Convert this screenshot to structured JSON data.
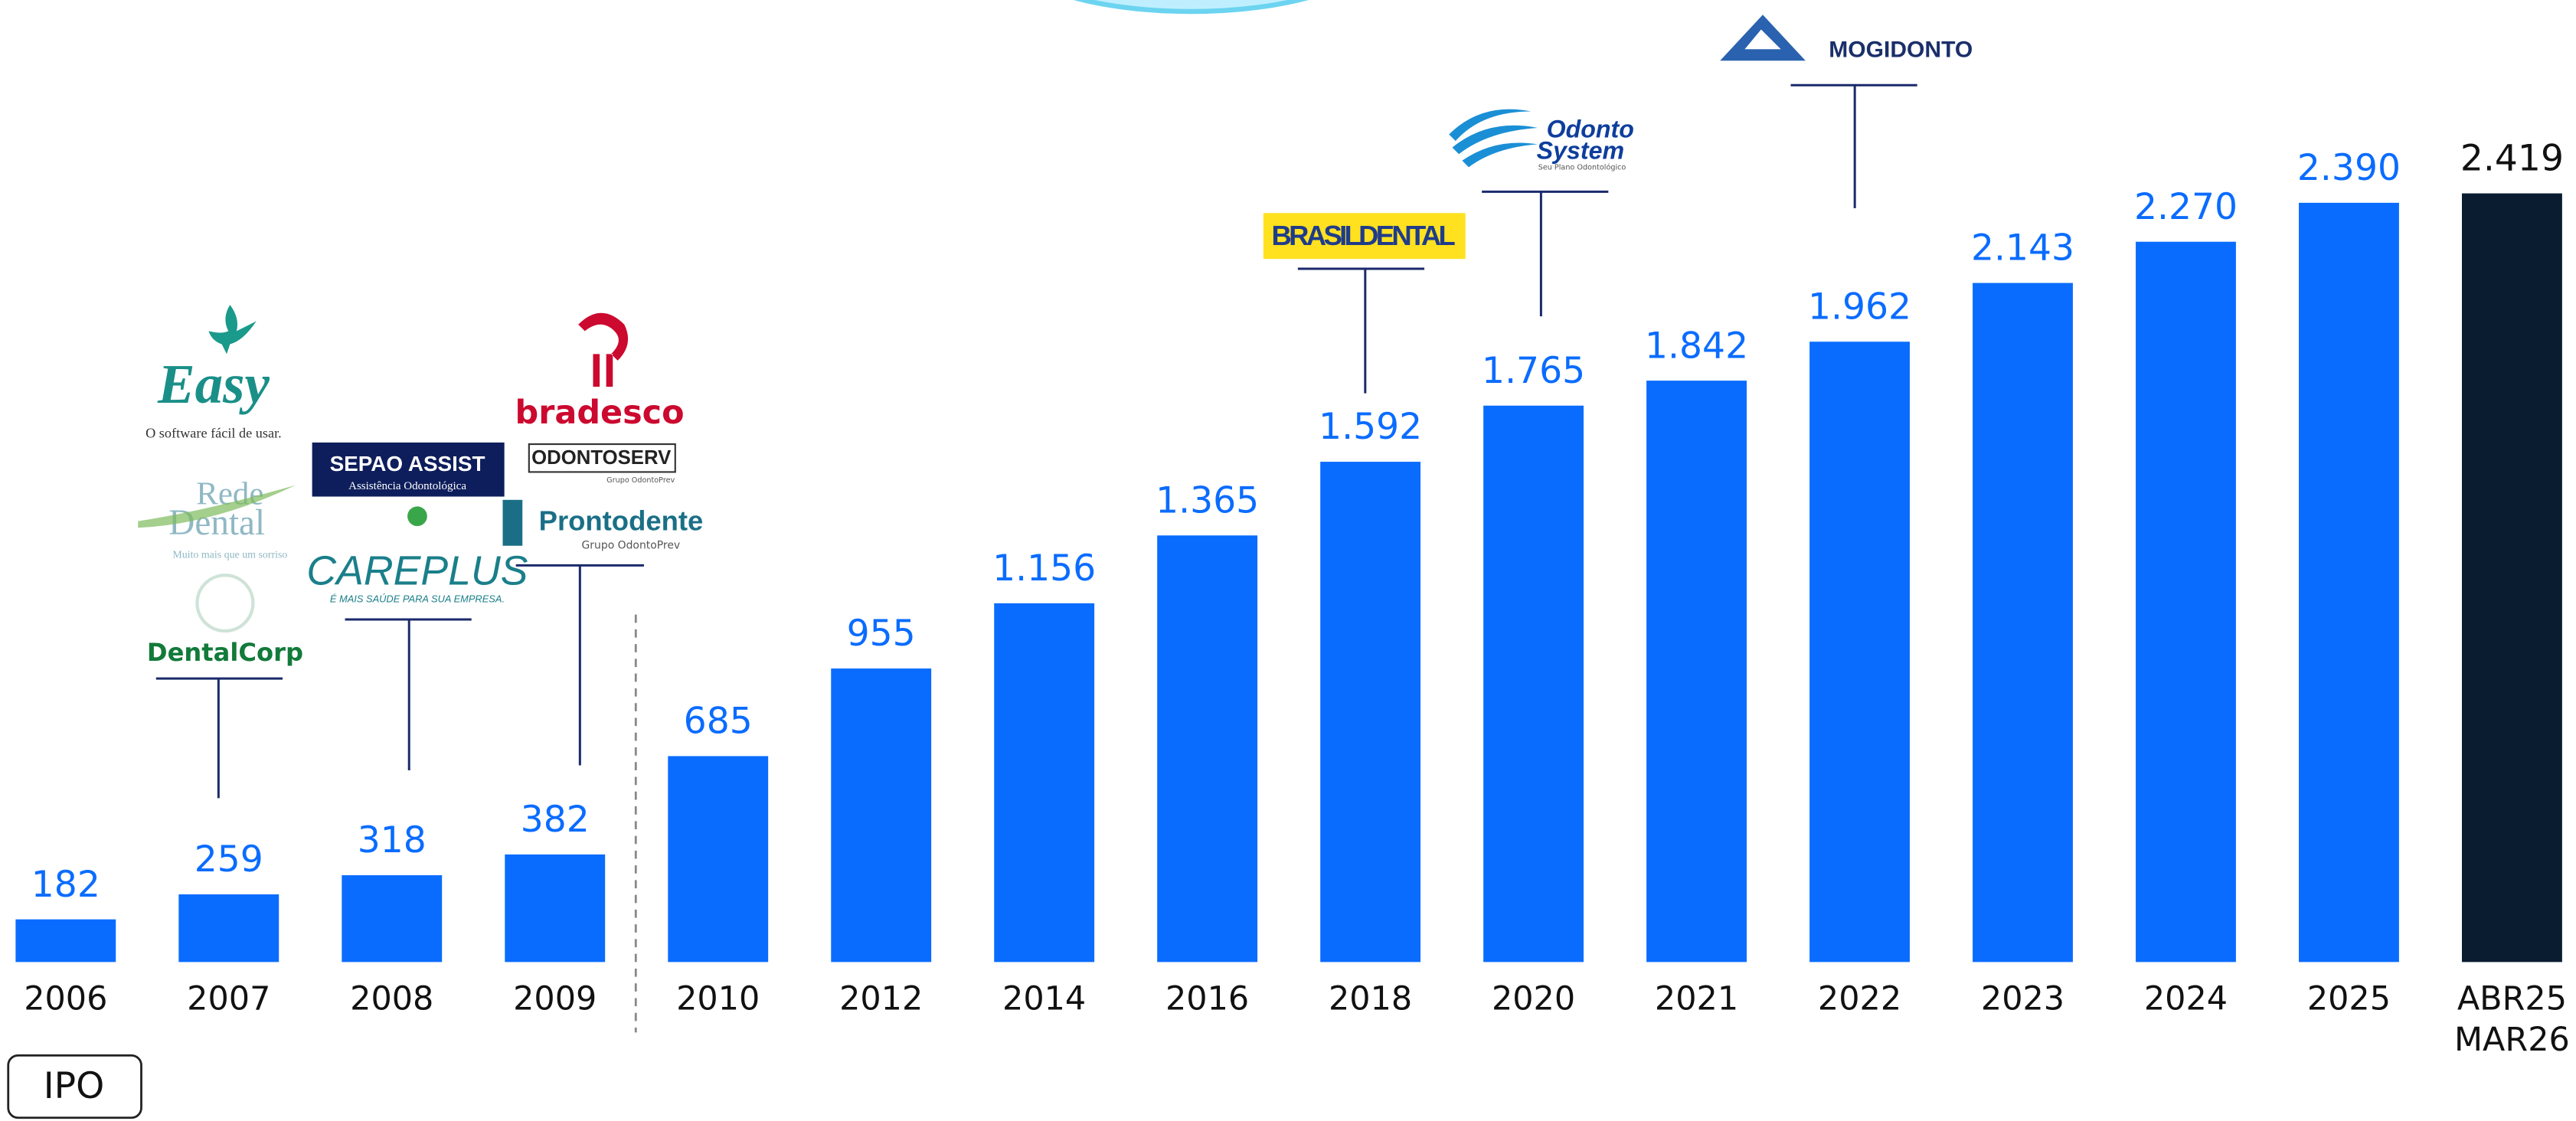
{
  "chart_data": {
    "type": "bar",
    "categories": [
      "2006",
      "2007",
      "2008",
      "2009",
      "2010",
      "2012",
      "2014",
      "2016",
      "2018",
      "2020",
      "2021",
      "2022",
      "2023",
      "2024",
      "2025",
      "ABR25\nMAR26"
    ],
    "values": [
      182,
      259,
      318,
      382,
      685,
      955,
      1156,
      1365,
      1592,
      1765,
      1842,
      1962,
      2143,
      2270,
      2390,
      2419
    ],
    "value_labels": [
      "182",
      "259",
      "318",
      "382",
      "685",
      "955",
      "1.156",
      "1.365",
      "1.592",
      "1.765",
      "1.842",
      "1.962",
      "2.143",
      "2.270",
      "2.390",
      "2.419"
    ],
    "colors": [
      "#0a6cff",
      "#0a6cff",
      "#0a6cff",
      "#0a6cff",
      "#0a6cff",
      "#0a6cff",
      "#0a6cff",
      "#0a6cff",
      "#0a6cff",
      "#0a6cff",
      "#0a6cff",
      "#0a6cff",
      "#0a6cff",
      "#0a6cff",
      "#0a6cff",
      "#0a1c30"
    ],
    "label_colors": [
      "#0a6cff",
      "#0a6cff",
      "#0a6cff",
      "#0a6cff",
      "#0a6cff",
      "#0a6cff",
      "#0a6cff",
      "#0a6cff",
      "#0a6cff",
      "#0a6cff",
      "#0a6cff",
      "#0a6cff",
      "#0a6cff",
      "#0a6cff",
      "#0a6cff",
      "#111111"
    ],
    "annotation": "IPO"
  },
  "logos": {
    "easy": [
      "Easy",
      "O software fácil de usar."
    ],
    "rede_dental": [
      "Rede",
      "Dental",
      "Muito mais que um sorriso"
    ],
    "dentalcorp": "DentalCorp",
    "sepao": [
      "SEPAO ASSIST",
      "Assistência Odontológica"
    ],
    "careplus": [
      "CAREPLUS",
      "É MAIS SAÚDE PARA SUA EMPRESA."
    ],
    "bradesco": "bradesco",
    "odontoserv": [
      "ODONTOSERV",
      "Grupo OdontoPrev"
    ],
    "prontodente": [
      "Prontodente",
      "Grupo OdontoPrev"
    ],
    "brasildental": "BRASILDENTAL",
    "odonto_system": [
      "Odonto",
      "System",
      "Seu Plano Odontológico"
    ],
    "mogidonto": "MOGIDONTO"
  }
}
